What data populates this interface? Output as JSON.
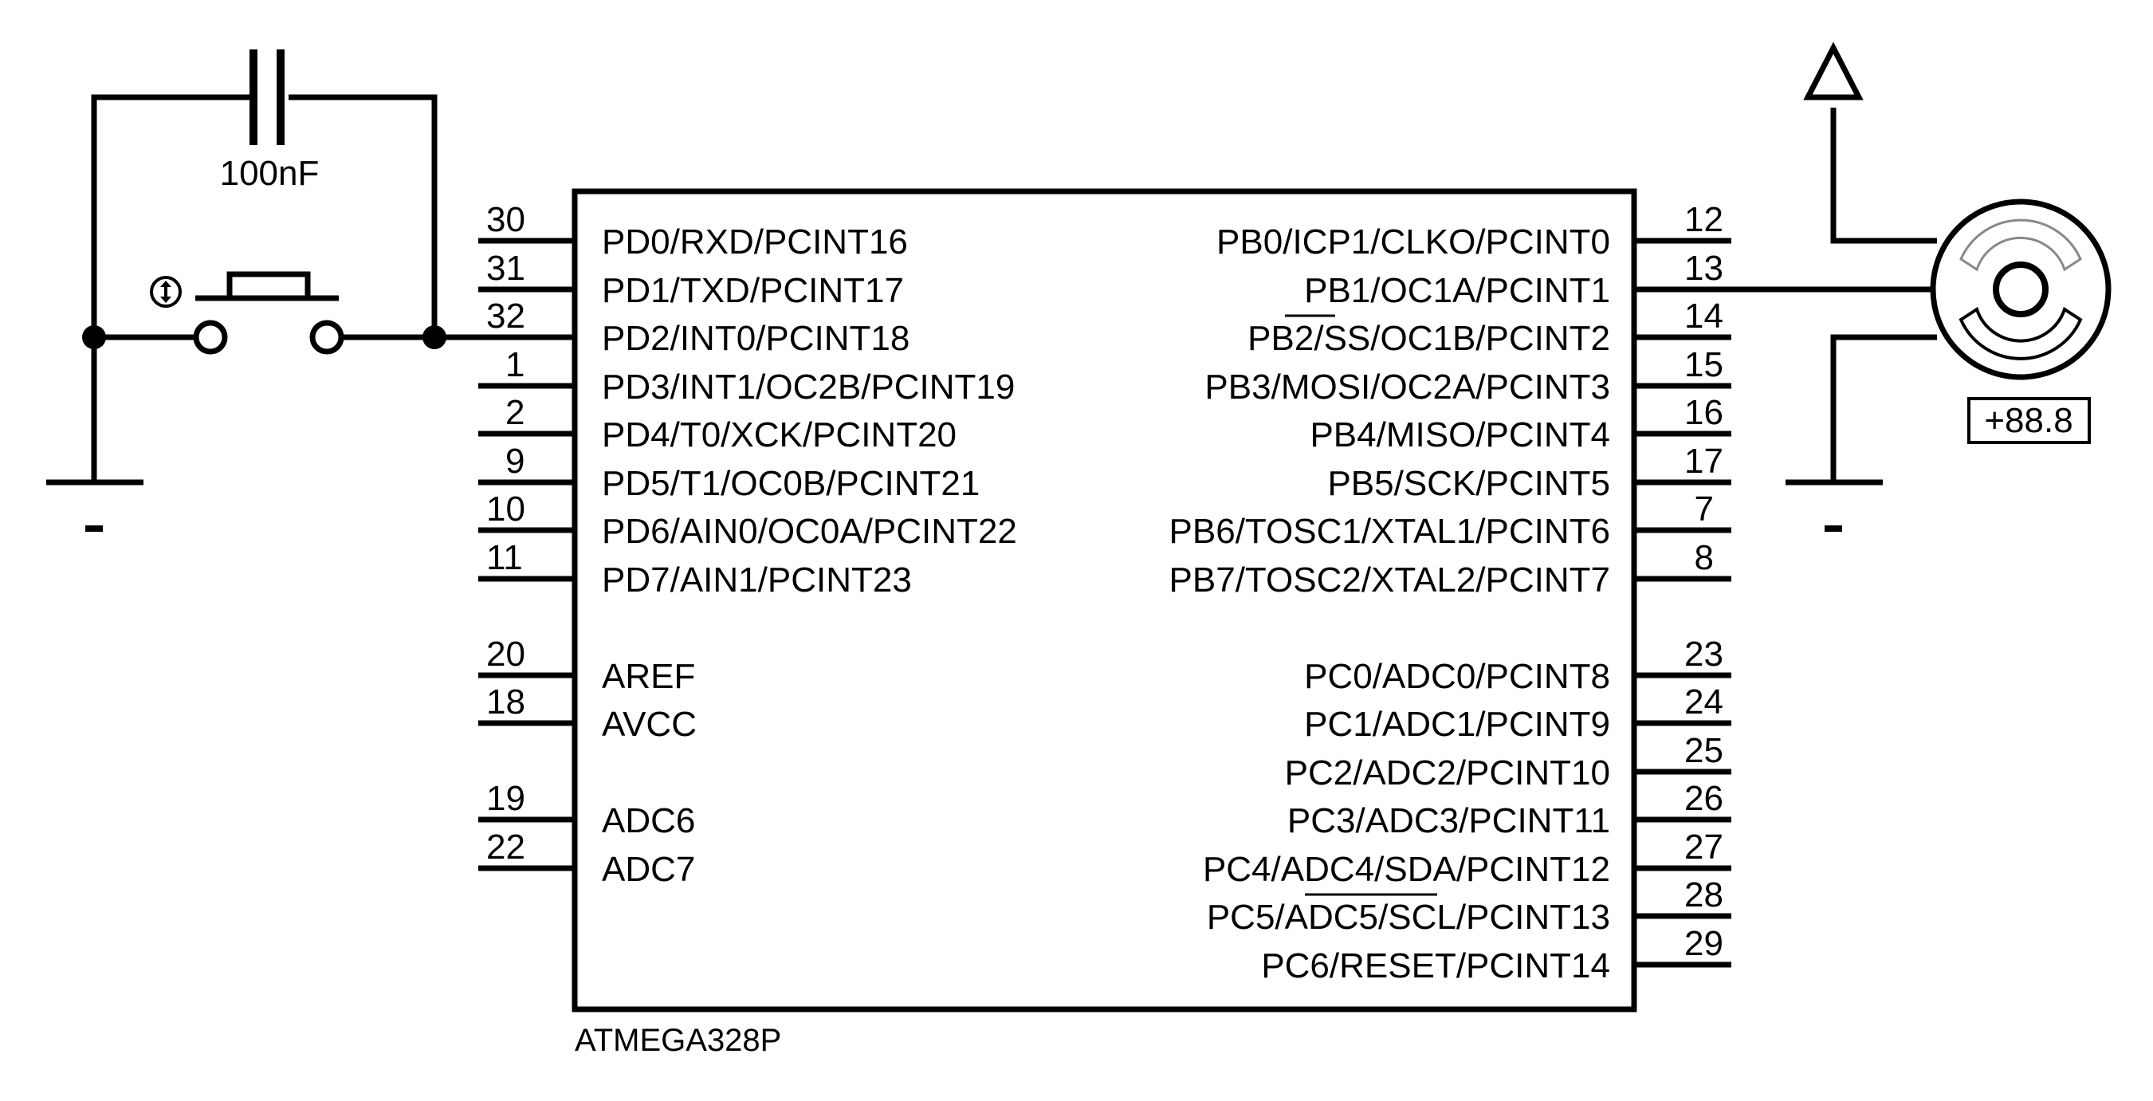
{
  "schematic": {
    "chip": {
      "name": "ATMEGA328P",
      "left_pins": [
        {
          "num": "30",
          "label": "PD0/RXD/PCINT16"
        },
        {
          "num": "31",
          "label": "PD1/TXD/PCINT17"
        },
        {
          "num": "32",
          "label": "PD2/INT0/PCINT18"
        },
        {
          "num": "1",
          "label": "PD3/INT1/OC2B/PCINT19"
        },
        {
          "num": "2",
          "label": "PD4/T0/XCK/PCINT20"
        },
        {
          "num": "9",
          "label": "PD5/T1/OC0B/PCINT21"
        },
        {
          "num": "10",
          "label": "PD6/AIN0/OC0A/PCINT22"
        },
        {
          "num": "11",
          "label": "PD7/AIN1/PCINT23"
        },
        {
          "num": "20",
          "label": "AREF"
        },
        {
          "num": "18",
          "label": "AVCC"
        },
        {
          "num": "19",
          "label": "ADC6"
        },
        {
          "num": "22",
          "label": "ADC7"
        }
      ],
      "right_pins": [
        {
          "num": "12",
          "label": "PB0/ICP1/CLKO/PCINT0"
        },
        {
          "num": "13",
          "label": "PB1/OC1A/PCINT1"
        },
        {
          "num": "14",
          "label": "PB2/SS/OC1B/PCINT2"
        },
        {
          "num": "15",
          "label": "PB3/MOSI/OC2A/PCINT3"
        },
        {
          "num": "16",
          "label": "PB4/MISO/PCINT4"
        },
        {
          "num": "17",
          "label": "PB5/SCK/PCINT5"
        },
        {
          "num": "7",
          "label": "PB6/TOSC1/XTAL1/PCINT6"
        },
        {
          "num": "8",
          "label": "PB7/TOSC2/XTAL2/PCINT7"
        },
        {
          "num": "23",
          "label": "PC0/ADC0/PCINT8"
        },
        {
          "num": "24",
          "label": "PC1/ADC1/PCINT9"
        },
        {
          "num": "25",
          "label": "PC2/ADC2/PCINT10"
        },
        {
          "num": "26",
          "label": "PC3/ADC3/PCINT11"
        },
        {
          "num": "27",
          "label": "PC4/ADC4/SDA/PCINT12"
        },
        {
          "num": "28",
          "label": "PC5/ADC5/SCL/PCINT13"
        },
        {
          "num": "29",
          "label": "PC6/RESET/PCINT14"
        }
      ]
    },
    "capacitor": {
      "value": "100nF"
    },
    "servo": {
      "readout": "+88.8"
    }
  }
}
